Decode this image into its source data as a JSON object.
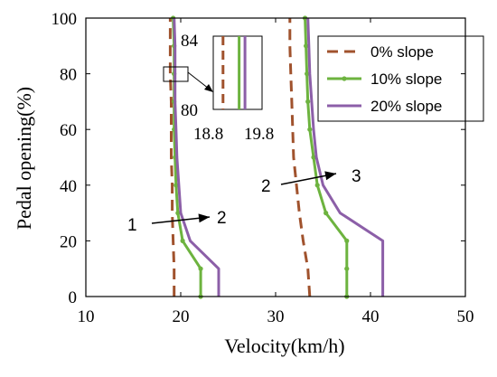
{
  "chart_data": {
    "type": "line",
    "title": "",
    "xlabel": "Velocity(km/h)",
    "ylabel": "Pedal opening(%)",
    "xlim": [
      10,
      50
    ],
    "ylim": [
      0,
      100
    ],
    "xticks": [
      10,
      20,
      30,
      40,
      50
    ],
    "yticks": [
      0,
      20,
      40,
      60,
      80,
      100
    ],
    "grid": false,
    "legend_position": "top-right",
    "series": [
      {
        "name": "0% slope",
        "color": "#a0522d",
        "style": "dashed",
        "marker": "none",
        "points": [
          [
            [
              19.3,
              0
            ],
            [
              19.3,
              10
            ],
            [
              19.2,
              20
            ],
            [
              19.1,
              30
            ],
            [
              19.1,
              40
            ],
            [
              19.0,
              50
            ],
            [
              19.0,
              60
            ],
            [
              19.0,
              70
            ],
            [
              18.9,
              80
            ],
            [
              18.9,
              90
            ],
            [
              18.9,
              100
            ]
          ],
          [
            [
              33.6,
              0
            ],
            [
              33.4,
              10
            ],
            [
              32.9,
              20
            ],
            [
              32.5,
              30
            ],
            [
              32.2,
              40
            ],
            [
              31.9,
              50
            ],
            [
              31.8,
              60
            ],
            [
              31.7,
              70
            ],
            [
              31.6,
              80
            ],
            [
              31.5,
              90
            ],
            [
              31.5,
              100
            ]
          ]
        ]
      },
      {
        "name": "10% slope",
        "color": "#6db33f",
        "style": "solid",
        "marker": "dot",
        "points": [
          [
            [
              22.1,
              0
            ],
            [
              22.1,
              10
            ],
            [
              20.2,
              20
            ],
            [
              19.7,
              30
            ],
            [
              19.5,
              40
            ],
            [
              19.4,
              50
            ],
            [
              19.3,
              60
            ],
            [
              19.3,
              70
            ],
            [
              19.3,
              80
            ],
            [
              19.3,
              90
            ],
            [
              19.2,
              100
            ]
          ],
          [
            [
              37.5,
              0
            ],
            [
              37.5,
              10
            ],
            [
              37.5,
              20
            ],
            [
              35.3,
              30
            ],
            [
              34.4,
              40
            ],
            [
              34.0,
              50
            ],
            [
              33.6,
              60
            ],
            [
              33.4,
              70
            ],
            [
              33.3,
              80
            ],
            [
              33.2,
              90
            ],
            [
              33.1,
              100
            ]
          ]
        ]
      },
      {
        "name": "20% slope",
        "color": "#8c5fa8",
        "style": "solid",
        "marker": "none",
        "points": [
          [
            [
              24.0,
              0
            ],
            [
              24.0,
              10
            ],
            [
              21.0,
              20
            ],
            [
              20.0,
              30
            ],
            [
              19.8,
              40
            ],
            [
              19.6,
              50
            ],
            [
              19.5,
              60
            ],
            [
              19.4,
              70
            ],
            [
              19.4,
              80
            ],
            [
              19.4,
              90
            ],
            [
              19.3,
              100
            ]
          ],
          [
            [
              41.3,
              0
            ],
            [
              41.3,
              10
            ],
            [
              41.3,
              20
            ],
            [
              36.8,
              30
            ],
            [
              35.0,
              40
            ],
            [
              34.3,
              50
            ],
            [
              34.0,
              60
            ],
            [
              33.8,
              70
            ],
            [
              33.6,
              80
            ],
            [
              33.5,
              90
            ],
            [
              33.4,
              100
            ]
          ]
        ]
      }
    ],
    "annotations": {
      "arrow1": {
        "from_label": "1",
        "to_label": "2"
      },
      "arrow2": {
        "from_label": "2",
        "to_label": "3"
      },
      "inset": {
        "y_top_label": "84",
        "y_bottom_label": "80",
        "x_left_label": "18.8",
        "x_right_label": "19.8",
        "x_range": [
          18.8,
          19.8
        ],
        "y_range": [
          80,
          84
        ],
        "series_x": {
          "0% slope": 19.0,
          "10% slope": 19.33,
          "20% slope": 19.45
        }
      }
    }
  }
}
